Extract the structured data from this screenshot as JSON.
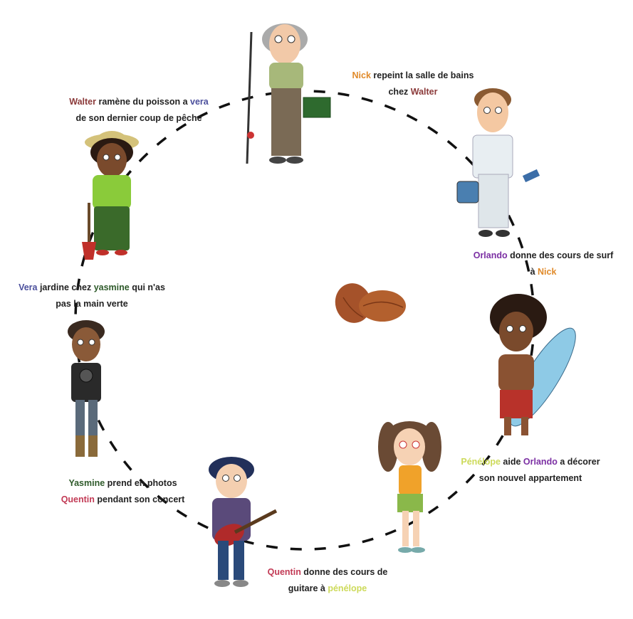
{
  "colors": {
    "walter": "#8b3a3a",
    "vera": "#4b4f9c",
    "nick": "#e08a2a",
    "orlando": "#7b2fa3",
    "penelope": "#cdda5a",
    "quentin": "#c23a55",
    "yasmine": "#2e5a2a",
    "text": "#222222"
  },
  "captions": {
    "walter_vera": {
      "name1": "Walter",
      "t1": " ramène du poisson a ",
      "name2": "vera",
      "t2": "de son dernier coup de pêche"
    },
    "nick_walter": {
      "name1": "Nick",
      "t1": " repeint la salle de bains",
      "t2": "chez ",
      "name2": "Walter"
    },
    "orlando_nick": {
      "name1": "Orlando",
      "t1": " donne des cours de surf",
      "t2": "à  ",
      "name2": "Nick"
    },
    "vera_yasmine": {
      "name1": "Vera",
      "t1": " jardine chez ",
      "name2": "yasmine",
      "t2": " qui n'as",
      "t3": "pas la main verte"
    },
    "penelope_orlando": {
      "name1": "Pénélope",
      "t1": " aide ",
      "name2": "Orlando",
      "t2": " a décorer",
      "t3": "son nouvel appartement"
    },
    "yasmine_quentin": {
      "name1": "Yasmine",
      "t1": " prend en photos",
      "name2": "Quentin",
      "t2": " pendant  son concert"
    },
    "quentin_penelope": {
      "name1": "Quentin",
      "t1": " donne des cours de",
      "t2": "guitare à ",
      "name2": "pénélope"
    }
  },
  "icons": [
    "walter-fisherman",
    "nick-painter",
    "orlando-surfer",
    "penelope-girl",
    "quentin-guitarist",
    "yasmine-photographer",
    "vera-gardener",
    "almonds"
  ]
}
